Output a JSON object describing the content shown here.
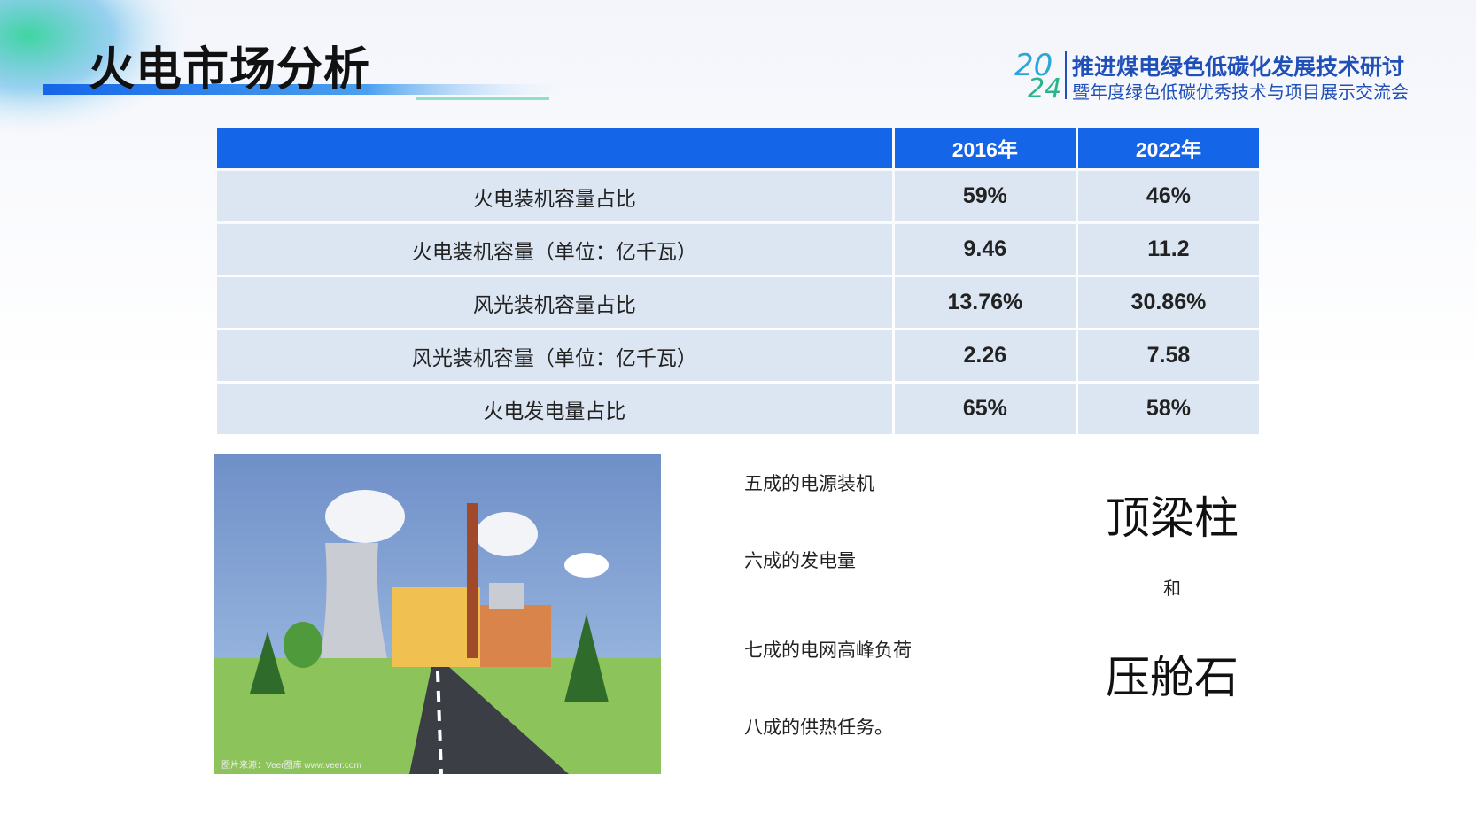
{
  "header": {
    "title": "火电市场分析",
    "logo_line1": "推进煤电绿色低碳化发展技术研讨",
    "logo_line2": "暨年度绿色低碳优秀技术与项目展示交流会"
  },
  "table": {
    "columns": [
      "2016年",
      "2022年"
    ],
    "rows": [
      [
        "火电装机容量占比",
        "59%",
        "46%"
      ],
      [
        "火电装机容量（单位：亿千瓦）",
        "9.46",
        "11.2"
      ],
      [
        "风光装机容量占比",
        "13.76%",
        "30.86%"
      ],
      [
        "风光装机容量（单位：亿千瓦）",
        "2.26",
        "7.58"
      ],
      [
        "火电发电量占比",
        "65%",
        "58%"
      ]
    ]
  },
  "image_credit": "图片来源：Veer图库 www.veer.com",
  "points": [
    "五成的电源装机",
    "六成的发电量",
    "七成的电网高峰负荷",
    "八成的供热任务。"
  ],
  "roles": {
    "first": "顶梁柱",
    "joiner": "和",
    "second": "压舱石"
  }
}
